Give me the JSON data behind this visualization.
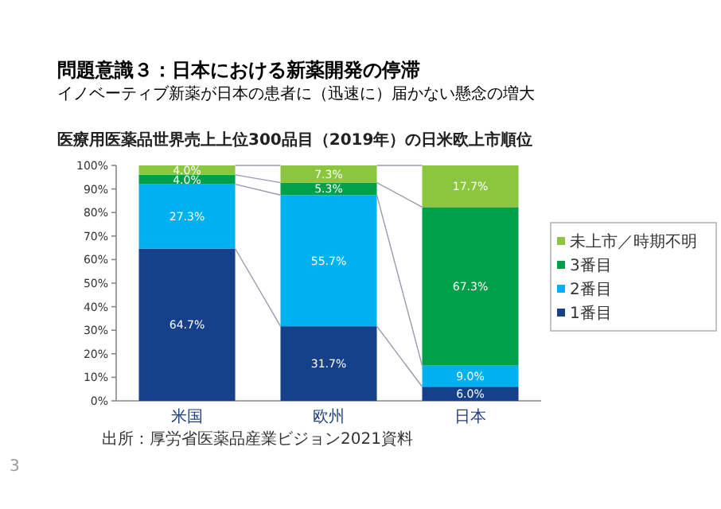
{
  "chart_data": {
    "type": "bar",
    "title": "問題意識３：日本における新薬開発の停滞",
    "subtitle": "イノベーティブ新薬が日本の患者に（迅速に）届かない懸念の増大",
    "xlabel": "医療用医薬品世界売上上位300品目（2019年）の日米欧上市順位",
    "categories": [
      "米国",
      "欧州",
      "日本"
    ],
    "stacked": true,
    "legend": "right",
    "ylim": [
      0,
      100
    ],
    "yticks": [
      {
        "value": 0,
        "label": "0%"
      },
      {
        "value": 10,
        "label": "10%"
      },
      {
        "value": 20,
        "label": "20%"
      },
      {
        "value": 30,
        "label": "30%"
      },
      {
        "value": 40,
        "label": "40%"
      },
      {
        "value": 50,
        "label": "50%"
      },
      {
        "value": 60,
        "label": "60%"
      },
      {
        "value": 70,
        "label": "70%"
      },
      {
        "value": 80,
        "label": "80%"
      },
      {
        "value": 90,
        "label": "90%"
      },
      {
        "value": 100,
        "label": "100%"
      }
    ],
    "series": [
      {
        "name": "1番目",
        "color": "#17408b",
        "values": [
          64.7,
          31.7,
          6.0
        ],
        "value_labels": [
          "64.7%",
          "31.7%",
          "6.0%"
        ]
      },
      {
        "name": "2番目",
        "color": "#00b0ef",
        "values": [
          27.3,
          55.7,
          9.0
        ],
        "value_labels": [
          "27.3%",
          "55.7%",
          "9.0%"
        ]
      },
      {
        "name": "3番目",
        "color": "#00a04a",
        "values": [
          4.0,
          5.3,
          67.3
        ],
        "value_labels": [
          "4.0%",
          "5.3%",
          "67.3%"
        ]
      },
      {
        "name": "未上市／時期不明",
        "color": "#8cc63f",
        "values": [
          4.0,
          7.3,
          17.7
        ],
        "value_labels": [
          "4.0%",
          "7.3%",
          "17.7%"
        ]
      }
    ],
    "annotations": [
      "出所：厚労省医薬品産業ビジョン2021資料",
      "3"
    ]
  }
}
